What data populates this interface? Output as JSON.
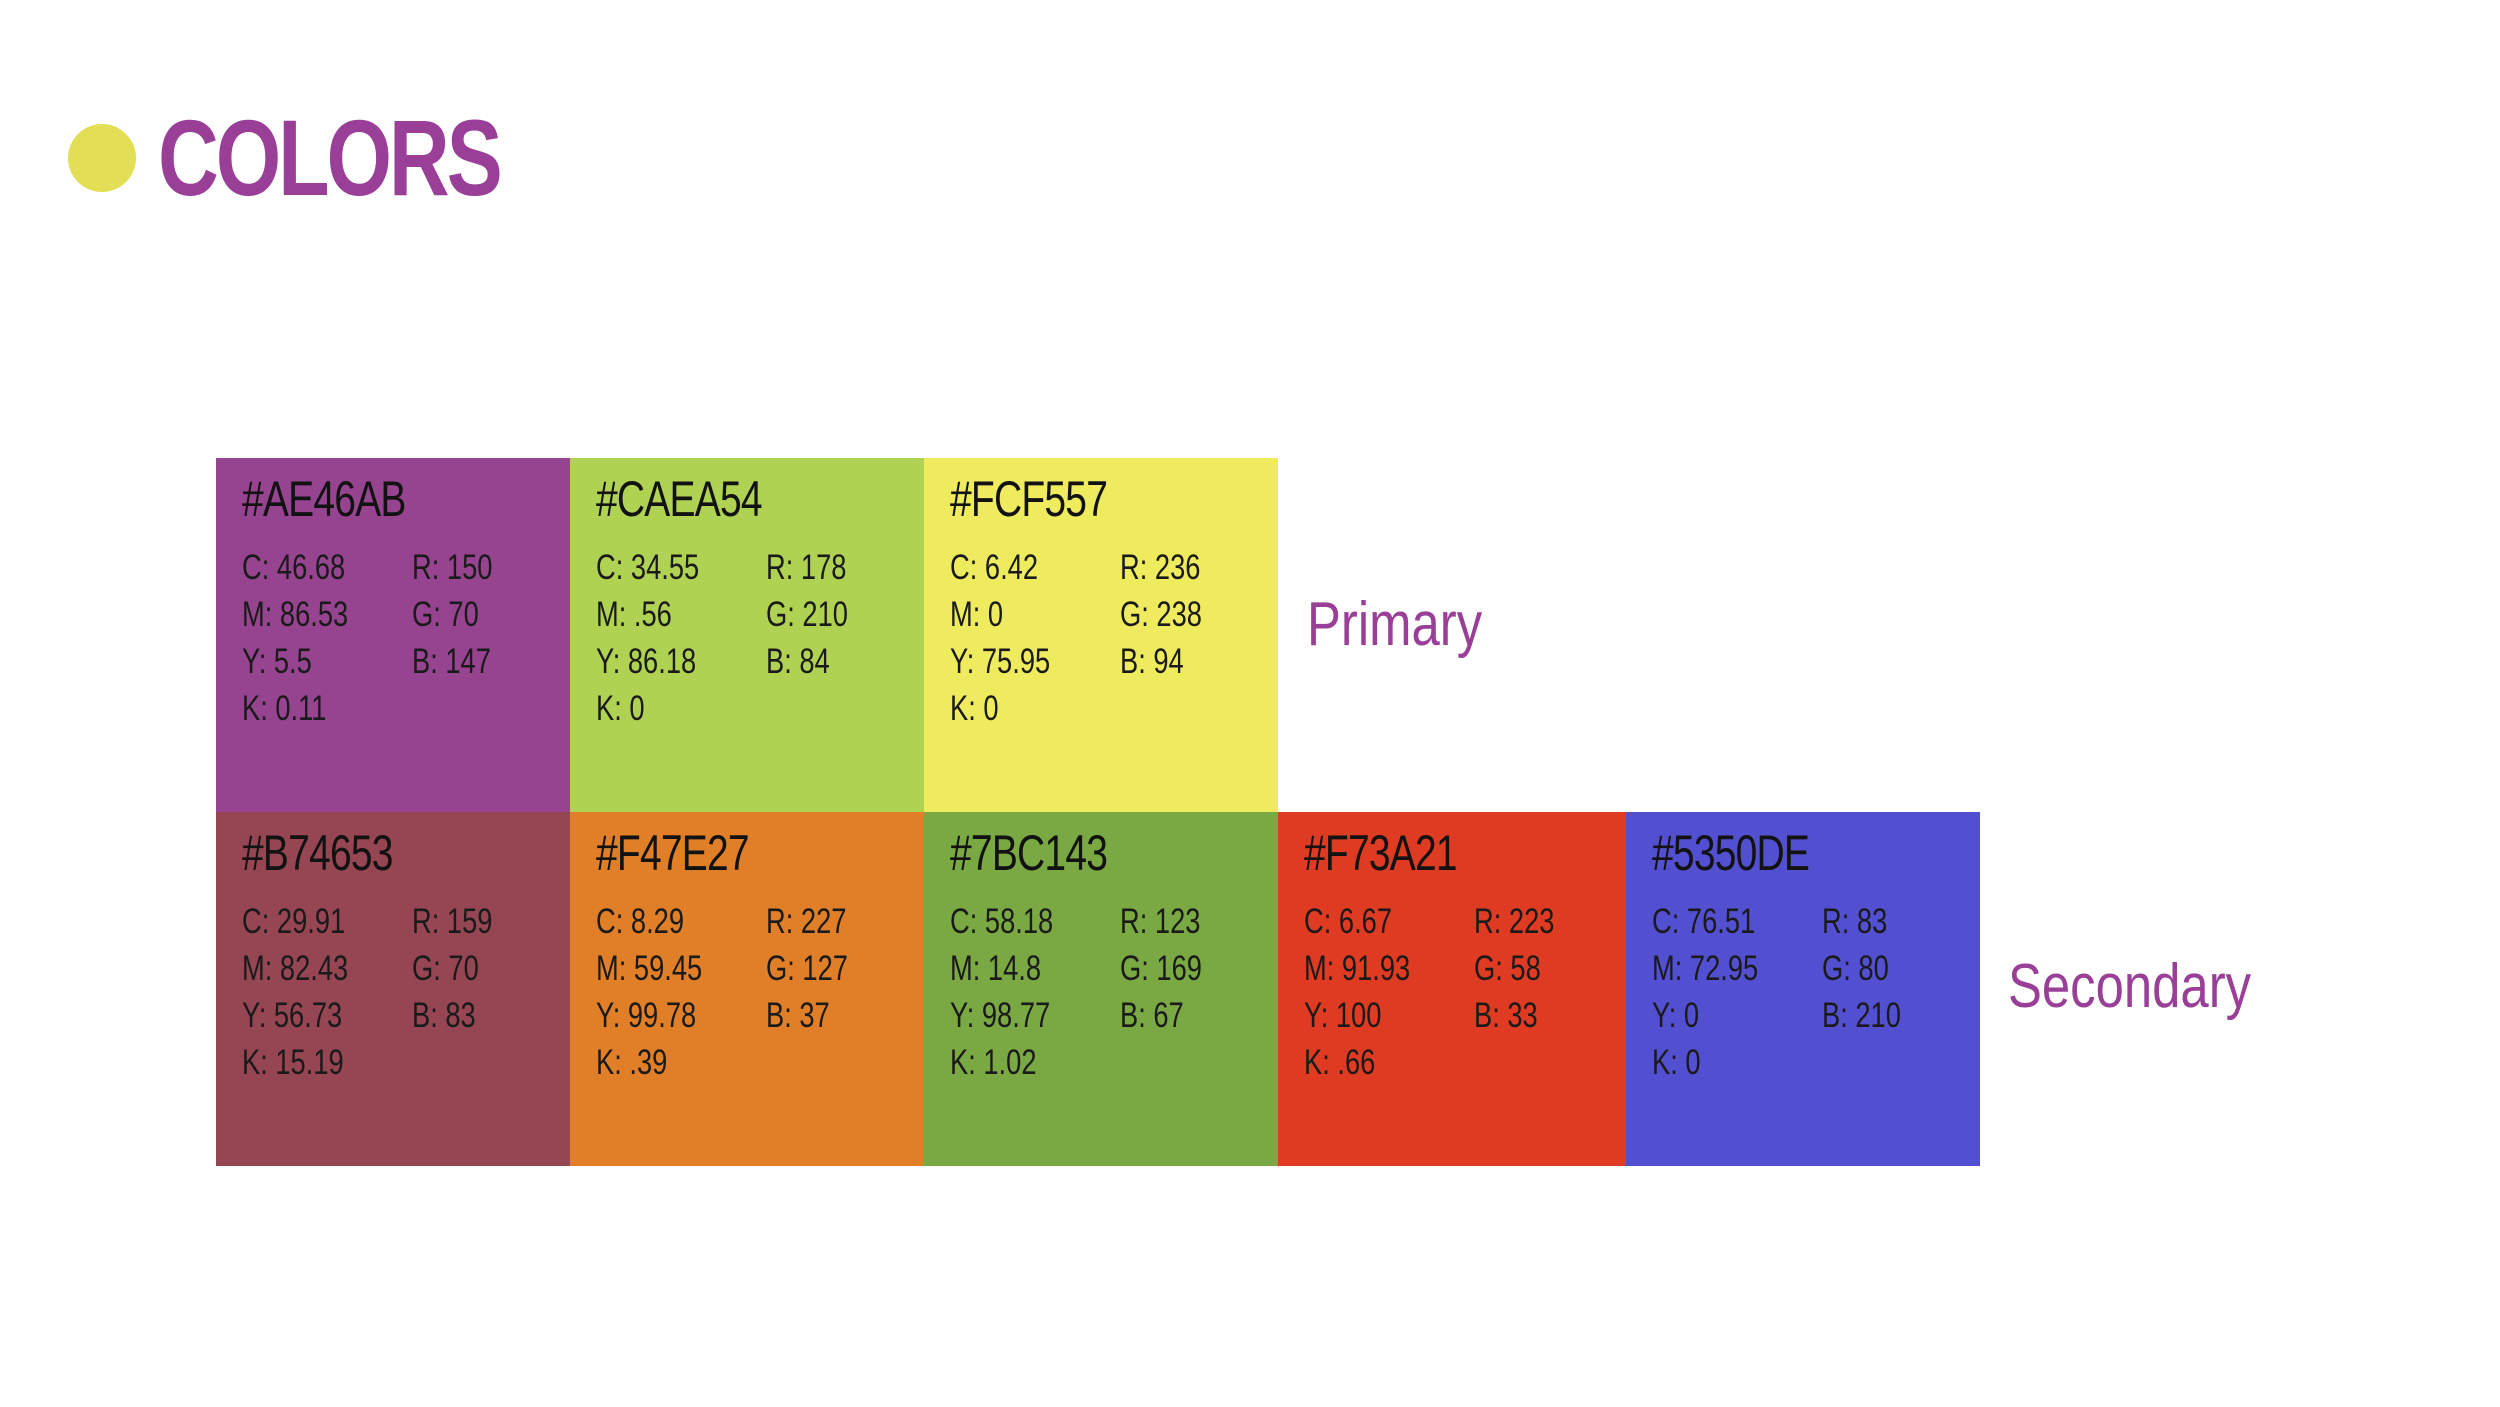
{
  "title": "COLORS",
  "primary_label": "Primary",
  "secondary_label": "Secondary",
  "primary": [
    {
      "hex": "#AE46AB",
      "bg": "#96448f",
      "c": "C: 46.68",
      "r": "R: 150",
      "m": "M: 86.53",
      "g": "G: 70",
      "y": "Y: 5.5",
      "b": "B: 147",
      "k": "K: 0.11"
    },
    {
      "hex": "#CAEA54",
      "bg": "#b0d253",
      "c": "C: 34.55",
      "r": "R: 178",
      "m": "M: .56",
      "g": "G: 210",
      "y": "Y: 86.18",
      "b": "B: 84",
      "k": "K: 0"
    },
    {
      "hex": "#FCF557",
      "bg": "#efeb5f",
      "c": "C: 6.42",
      "r": "R: 236",
      "m": "M: 0",
      "g": "G: 238",
      "y": "Y: 75.95",
      "b": "B: 94",
      "k": "K: 0"
    }
  ],
  "secondary": [
    {
      "hex": "#B74653",
      "bg": "#964653",
      "c": "C: 29.91",
      "r": "R: 159",
      "m": "M: 82.43",
      "g": "G: 70",
      "y": "Y: 56.73",
      "b": "B: 83",
      "k": "K: 15.19"
    },
    {
      "hex": "#F47E27",
      "bg": "#e07f27",
      "c": "C: 8.29",
      "r": "R: 227",
      "m": "M: 59.45",
      "g": "G: 127",
      "y": "Y: 99.78",
      "b": "B: 37",
      "k": "K: .39"
    },
    {
      "hex": "#7BC143",
      "bg": "#7aa843",
      "c": "C: 58.18",
      "r": "R: 123",
      "m": "M: 14.8",
      "g": "G: 169",
      "y": "Y: 98.77",
      "b": "B: 67",
      "k": "K: 1.02"
    },
    {
      "hex": "#F73A21",
      "bg": "#df3a22",
      "c": "C: 6.67",
      "r": "R: 223",
      "m": "M: 91.93",
      "g": "G: 58",
      "y": "Y: 100",
      "b": "B: 33",
      "k": "K: .66"
    },
    {
      "hex": "#5350DE",
      "bg": "#5250d1",
      "c": "C: 76.51",
      "r": "R: 83",
      "m": "M: 72.95",
      "g": "G: 80",
      "y": "Y: 0",
      "b": "B: 210",
      "k": "K: 0"
    }
  ],
  "colors": {
    "title": "#9a3f98",
    "dot": "#e2de55",
    "label": "#9a3f98"
  }
}
